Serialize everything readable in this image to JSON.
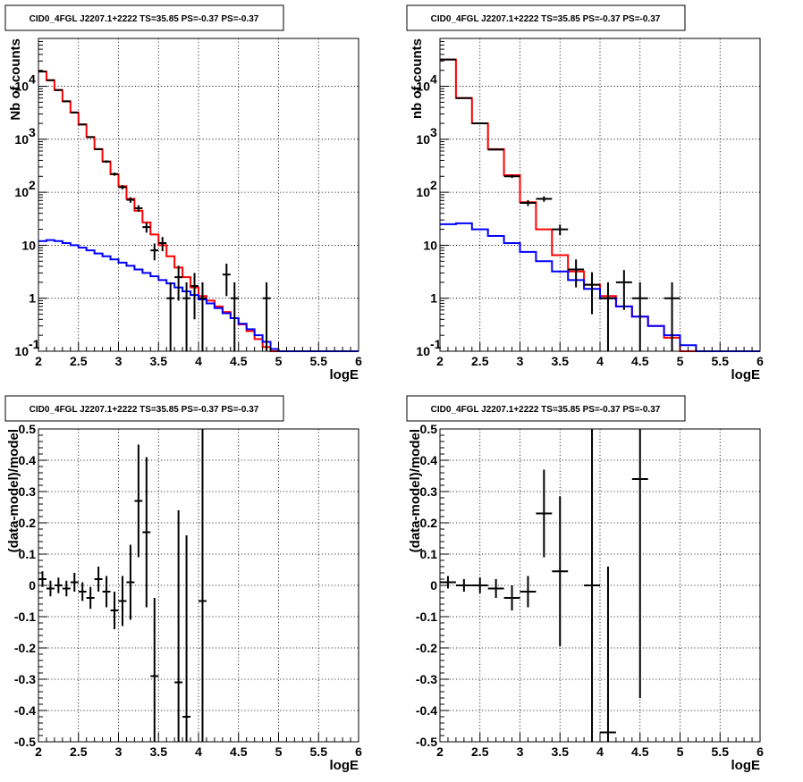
{
  "colors": {
    "total_model": "#ff0000",
    "source_model": "#0000ff",
    "data": "#000000"
  },
  "chart_data": [
    {
      "type": "histogram",
      "title": "CID0_4FGL J2207.1+2222 TS=35.85 PS=-0.37 PS=-0.37",
      "xlabel": "logE",
      "ylabel": "Nb of counts",
      "xlim": [
        2,
        6
      ],
      "ylim": [
        0.1,
        80000
      ],
      "yscale": "log",
      "grid": true,
      "x_ticks": [
        "2",
        "2.5",
        "3",
        "3.5",
        "4",
        "4.5",
        "5",
        "5.5",
        "6"
      ],
      "y_ticks": [
        "10^-1",
        "1",
        "10",
        "10^2",
        "10^3",
        "10^4"
      ],
      "bin_edges": [
        2.0,
        2.1,
        2.2,
        2.3,
        2.4,
        2.5,
        2.6,
        2.7,
        2.8,
        2.9,
        3.0,
        3.1,
        3.2,
        3.3,
        3.4,
        3.5,
        3.6,
        3.7,
        3.8,
        3.9,
        4.0,
        4.1,
        4.2,
        4.3,
        4.4,
        4.5,
        4.6,
        4.7,
        4.8,
        4.9,
        5.0,
        5.1,
        5.2,
        5.3,
        5.4,
        5.5,
        5.6,
        5.7,
        5.8,
        5.9,
        6.0
      ],
      "series": [
        {
          "name": "",
          "kind": "step",
          "color": "#ff0000",
          "values": [
            19000,
            13000,
            8500,
            5200,
            3200,
            1900,
            1100,
            650,
            380,
            220,
            130,
            75,
            45,
            27,
            16,
            10,
            6.2,
            3.8,
            2.5,
            1.6,
            1.1,
            0.9,
            0.7,
            0.55,
            0.42,
            0.32,
            0.24,
            0.17,
            0.12,
            0.1,
            0.1,
            0.1,
            0.1,
            0.1,
            0.1,
            0.1,
            0.1,
            0.1,
            0.1,
            0.1
          ]
        },
        {
          "name": "",
          "kind": "step",
          "color": "#0000ff",
          "values": [
            12,
            12.5,
            12,
            11,
            10,
            9,
            8,
            7,
            6.2,
            5.4,
            4.7,
            4.1,
            3.5,
            3.0,
            2.6,
            2.2,
            1.9,
            1.6,
            1.35,
            1.15,
            0.95,
            0.8,
            0.65,
            0.52,
            0.42,
            0.33,
            0.26,
            0.2,
            0.15,
            0.11,
            0.1,
            0.1,
            0.1,
            0.1,
            0.1,
            0.1,
            0.1,
            0.1,
            0.1,
            0.1
          ]
        },
        {
          "name": "",
          "kind": "points",
          "x": [
            2.05,
            2.15,
            2.25,
            2.35,
            2.45,
            2.55,
            2.65,
            2.75,
            2.85,
            2.95,
            3.05,
            3.15,
            3.25,
            3.35,
            3.45,
            3.55,
            3.65,
            3.75,
            3.85,
            3.95,
            4.05,
            4.35,
            4.45,
            4.85
          ],
          "y": [
            19000,
            13000,
            8500,
            5200,
            3200,
            1900,
            1100,
            650,
            380,
            220,
            125,
            72,
            50,
            22,
            8,
            11,
            1,
            2.5,
            1,
            1.7,
            1,
            2.8,
            1,
            1
          ],
          "yerr": [
            140,
            115,
            92,
            72,
            57,
            44,
            33,
            26,
            20,
            15,
            11,
            8.5,
            7,
            4.7,
            2.8,
            3.3,
            1,
            1.6,
            1,
            1.3,
            1,
            1.7,
            1,
            1
          ]
        }
      ]
    },
    {
      "type": "histogram",
      "title": "CID0_4FGL J2207.1+2222 TS=35.85 PS=-0.37 PS=-0.37",
      "xlabel": "logE",
      "ylabel": "nb of counts",
      "xlim": [
        2,
        6
      ],
      "ylim": [
        0.1,
        80000
      ],
      "yscale": "log",
      "grid": true,
      "x_ticks": [
        "2",
        "2.5",
        "3",
        "3.5",
        "4",
        "4.5",
        "5",
        "5.5",
        "6"
      ],
      "y_ticks": [
        "10^-1",
        "1",
        "10",
        "10^2",
        "10^3",
        "10^4"
      ],
      "bin_edges": [
        2.0,
        2.2,
        2.4,
        2.6,
        2.8,
        3.0,
        3.2,
        3.4,
        3.6,
        3.8,
        4.0,
        4.2,
        4.4,
        4.6,
        4.8,
        5.0,
        5.2,
        5.4,
        5.6,
        5.8,
        6.0
      ],
      "series": [
        {
          "name": "",
          "kind": "step",
          "color": "#ff0000",
          "values": [
            32000,
            6000,
            2000,
            650,
            210,
            65,
            20,
            6.5,
            3.2,
            1.8,
            1.1,
            0.7,
            0.45,
            0.3,
            0.18,
            0.1,
            0.1,
            0.1,
            0.1,
            0.1
          ]
        },
        {
          "name": "",
          "kind": "step",
          "color": "#0000ff",
          "values": [
            25,
            26,
            20,
            15,
            11,
            7.5,
            5,
            3.2,
            2.2,
            1.5,
            1.0,
            0.7,
            0.45,
            0.3,
            0.2,
            0.13,
            0.1,
            0.1,
            0.1,
            0.1
          ]
        },
        {
          "name": "",
          "kind": "points",
          "x": [
            2.1,
            2.3,
            2.5,
            2.7,
            2.9,
            3.1,
            3.3,
            3.5,
            3.7,
            3.9,
            4.1,
            4.3,
            4.5,
            4.9
          ],
          "y": [
            32000,
            6000,
            2000,
            640,
            200,
            63,
            75,
            20,
            3.5,
            1.8,
            1,
            2,
            1,
            1
          ],
          "yerr": [
            180,
            77,
            45,
            25,
            14,
            8,
            8.7,
            4.5,
            1.9,
            1.3,
            1,
            1.4,
            1,
            1
          ]
        }
      ]
    },
    {
      "type": "scatter",
      "title": "CID0_4FGL J2207.1+2222 TS=35.85 PS=-0.37 PS=-0.37",
      "xlabel": "logE",
      "ylabel": "(data-model)/model",
      "xlim": [
        2,
        6
      ],
      "ylim": [
        -0.5,
        0.5
      ],
      "grid": true,
      "x_ticks": [
        "2",
        "2.5",
        "3",
        "3.5",
        "4",
        "4.5",
        "5",
        "5.5",
        "6"
      ],
      "y_ticks": [
        "-0.5",
        "-0.4",
        "-0.3",
        "-0.2",
        "-0.1",
        "0",
        "0.1",
        "0.2",
        "0.3",
        "0.4",
        "0.5"
      ],
      "series": [
        {
          "name": "",
          "x": [
            2.05,
            2.15,
            2.25,
            2.35,
            2.45,
            2.55,
            2.65,
            2.75,
            2.85,
            2.95,
            3.05,
            3.15,
            3.25,
            3.35,
            3.45,
            3.75,
            3.85,
            4.05
          ],
          "y": [
            0.02,
            -0.01,
            0.0,
            -0.01,
            0.01,
            -0.02,
            -0.04,
            0.02,
            -0.02,
            -0.08,
            -0.05,
            0.01,
            0.27,
            0.17,
            -0.29,
            -0.31,
            -0.42,
            -0.05
          ],
          "yerr": [
            0.025,
            0.025,
            0.025,
            0.025,
            0.03,
            0.03,
            0.035,
            0.04,
            0.05,
            0.06,
            0.08,
            0.12,
            0.18,
            0.24,
            0.25,
            0.55,
            0.58,
            0.7
          ]
        }
      ]
    },
    {
      "type": "scatter",
      "title": "CID0_4FGL J2207.1+2222 TS=35.85 PS=-0.37 PS=-0.37",
      "xlabel": "logE",
      "ylabel": "(data-model)/model",
      "xlim": [
        2,
        6
      ],
      "ylim": [
        -0.5,
        0.5
      ],
      "grid": true,
      "x_ticks": [
        "2",
        "2.5",
        "3",
        "3.5",
        "4",
        "4.5",
        "5",
        "5.5",
        "6"
      ],
      "y_ticks": [
        "-0.5",
        "-0.4",
        "-0.3",
        "-0.2",
        "-0.1",
        "0",
        "0.1",
        "0.2",
        "0.3",
        "0.4",
        "0.5"
      ],
      "series": [
        {
          "name": "",
          "x": [
            2.1,
            2.3,
            2.5,
            2.7,
            2.9,
            3.1,
            3.3,
            3.5,
            3.9,
            4.1,
            4.5
          ],
          "y": [
            0.01,
            0.0,
            0.0,
            -0.01,
            -0.04,
            -0.02,
            0.23,
            0.045,
            0.0,
            -0.47,
            0.34
          ],
          "yerr": [
            0.02,
            0.02,
            0.025,
            0.03,
            0.04,
            0.05,
            0.14,
            0.24,
            0.8,
            0.53,
            0.7
          ]
        }
      ]
    }
  ]
}
